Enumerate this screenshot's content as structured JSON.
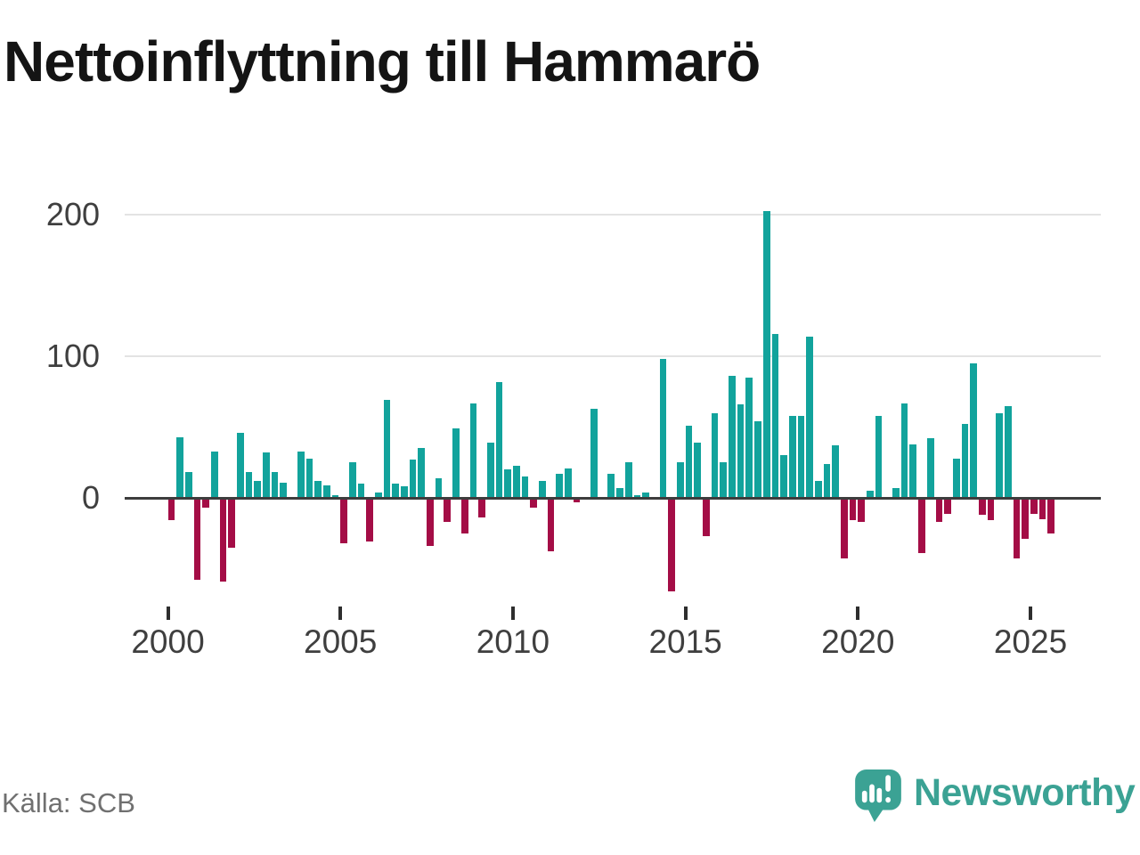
{
  "header": {
    "title": "Nettoinflyttning till Hammarö"
  },
  "footer": {
    "source": "Källa: SCB",
    "brand": "Newsworthy"
  },
  "icons": {
    "logo": "newsworthy-speech-bubble-barchart-icon"
  },
  "colors": {
    "positive": "#12a39c",
    "negative": "#a40d46",
    "brand": "#3ba294",
    "grid": "#e3e3e3",
    "zero_line": "#3d3d3d",
    "tick": "#2e2e2e",
    "axis_text": "#3f3f3f",
    "title_text": "#141414",
    "muted_text": "#707070"
  },
  "chart_data": {
    "type": "bar",
    "title": "Nettoinflyttning till Hammarö",
    "grid": true,
    "legend": false,
    "ylim": [
      -75,
      210
    ],
    "y_tick_values": [
      200,
      100,
      0
    ],
    "y_tick_labels": [
      "200",
      "100",
      "0"
    ],
    "x_tick_years": [
      2000,
      2005,
      2010,
      2015,
      2020,
      2025
    ],
    "x_tick_labels": [
      "2000",
      "2005",
      "2010",
      "2015",
      "2020",
      "2025"
    ],
    "x": [
      "2000 Q1",
      "2000 Q2",
      "2000 Q3",
      "2000 Q4",
      "2001 Q1",
      "2001 Q2",
      "2001 Q3",
      "2001 Q4",
      "2002 Q1",
      "2002 Q2",
      "2002 Q3",
      "2002 Q4",
      "2003 Q1",
      "2003 Q2",
      "2003 Q3",
      "2003 Q4",
      "2004 Q1",
      "2004 Q2",
      "2004 Q3",
      "2004 Q4",
      "2005 Q1",
      "2005 Q2",
      "2005 Q3",
      "2005 Q4",
      "2006 Q1",
      "2006 Q2",
      "2006 Q3",
      "2006 Q4",
      "2007 Q1",
      "2007 Q2",
      "2007 Q3",
      "2007 Q4",
      "2008 Q1",
      "2008 Q2",
      "2008 Q3",
      "2008 Q4",
      "2009 Q1",
      "2009 Q2",
      "2009 Q3",
      "2009 Q4",
      "2010 Q1",
      "2010 Q2",
      "2010 Q3",
      "2010 Q4",
      "2011 Q1",
      "2011 Q2",
      "2011 Q3",
      "2011 Q4",
      "2012 Q1",
      "2012 Q2",
      "2012 Q3",
      "2012 Q4",
      "2013 Q1",
      "2013 Q2",
      "2013 Q3",
      "2013 Q4",
      "2014 Q1",
      "2014 Q2",
      "2014 Q3",
      "2014 Q4",
      "2015 Q1",
      "2015 Q2",
      "2015 Q3",
      "2015 Q4",
      "2016 Q1",
      "2016 Q2",
      "2016 Q3",
      "2016 Q4",
      "2017 Q1",
      "2017 Q2",
      "2017 Q3",
      "2017 Q4",
      "2018 Q1",
      "2018 Q2",
      "2018 Q3",
      "2018 Q4",
      "2019 Q1",
      "2019 Q2",
      "2019 Q3",
      "2019 Q4",
      "2020 Q1",
      "2020 Q2",
      "2020 Q3",
      "2020 Q4",
      "2021 Q1",
      "2021 Q2",
      "2021 Q3",
      "2021 Q4",
      "2022 Q1",
      "2022 Q2",
      "2022 Q3",
      "2022 Q4",
      "2023 Q1",
      "2023 Q2",
      "2023 Q3",
      "2023 Q4",
      "2024 Q1",
      "2024 Q2",
      "2024 Q3",
      "2024 Q4",
      "2025 Q1",
      "2025 Q2",
      "2025 Q3"
    ],
    "values": [
      -16,
      43,
      18,
      -58,
      -7,
      33,
      -59,
      -35,
      46,
      18,
      12,
      32,
      18,
      11,
      0,
      33,
      28,
      12,
      9,
      2,
      -32,
      25,
      10,
      -31,
      4,
      69,
      10,
      8,
      27,
      35,
      -34,
      14,
      -17,
      49,
      -25,
      67,
      -14,
      39,
      82,
      20,
      23,
      15,
      -7,
      12,
      -38,
      17,
      21,
      -3,
      0,
      63,
      0,
      17,
      7,
      25,
      2,
      4,
      0,
      98,
      -66,
      25,
      51,
      39,
      -27,
      60,
      25,
      86,
      66,
      85,
      54,
      203,
      116,
      30,
      58,
      58,
      114,
      12,
      24,
      37,
      -43,
      -16,
      -17,
      5,
      58,
      0,
      7,
      67,
      38,
      -39,
      42,
      -17,
      -11,
      28,
      52,
      95,
      -12,
      -16,
      60,
      65,
      -43,
      -29,
      -11,
      -15,
      -25
    ]
  }
}
